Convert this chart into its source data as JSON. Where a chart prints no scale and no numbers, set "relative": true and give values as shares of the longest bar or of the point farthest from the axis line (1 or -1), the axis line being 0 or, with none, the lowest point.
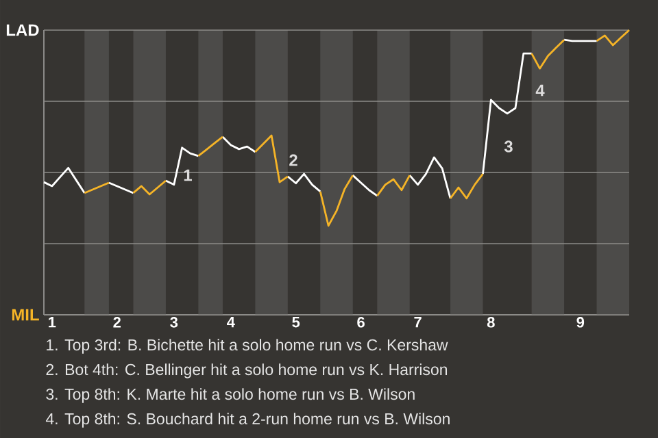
{
  "chart_data": {
    "type": "line",
    "relative": true,
    "categories": [
      null,
      "1",
      null,
      null,
      null,
      null,
      null,
      null,
      null,
      "2",
      null,
      null,
      null,
      null,
      null,
      null,
      "3",
      null,
      null,
      null,
      null,
      null,
      null,
      "4",
      null,
      null,
      null,
      null,
      null,
      null,
      null,
      "5",
      null,
      null,
      null,
      null,
      null,
      null,
      null,
      "6",
      null,
      null,
      null,
      null,
      null,
      null,
      "7",
      null,
      null,
      null,
      null,
      null,
      null,
      null,
      null,
      "8",
      null,
      null,
      null,
      null,
      null,
      null,
      null,
      null,
      null,
      null,
      "9",
      null,
      null,
      null,
      null,
      null,
      null
    ],
    "series": [
      {
        "color": "#ffffff",
        "values": [
          0.466,
          0.452,
          0.484,
          0.516,
          0.472,
          0.428,
          null,
          null,
          0.464,
          0.452,
          0.44,
          0.428,
          null,
          null,
          null,
          0.471,
          0.457,
          0.587,
          0.567,
          0.558,
          null,
          null,
          0.625,
          0.596,
          0.582,
          0.591,
          0.572,
          null,
          null,
          null,
          0.486,
          0.462,
          0.495,
          0.457,
          0.433,
          null,
          null,
          null,
          0.49,
          0.464,
          0.438,
          0.418,
          null,
          null,
          null,
          0.49,
          0.457,
          0.495,
          0.553,
          0.514,
          0.409,
          null,
          null,
          null,
          0.495,
          0.755,
          0.726,
          0.707,
          0.726,
          0.918,
          0.918,
          null,
          null,
          null,
          0.966,
          0.962,
          0.962,
          0.962,
          0.962,
          null,
          null,
          null,
          null
        ]
      },
      {
        "color": "#f5b427",
        "values": [
          null,
          null,
          null,
          null,
          null,
          0.428,
          0.44,
          0.452,
          0.464,
          null,
          null,
          0.428,
          0.452,
          0.423,
          0.447,
          0.471,
          null,
          null,
          null,
          0.558,
          0.58,
          0.603,
          0.625,
          null,
          null,
          null,
          0.572,
          0.601,
          0.63,
          0.466,
          0.486,
          null,
          null,
          null,
          0.433,
          0.313,
          0.365,
          0.442,
          0.49,
          null,
          null,
          0.418,
          0.457,
          0.476,
          0.438,
          0.49,
          null,
          null,
          null,
          null,
          0.409,
          0.447,
          0.409,
          0.457,
          0.495,
          null,
          null,
          null,
          null,
          null,
          0.918,
          0.865,
          0.909,
          0.938,
          0.966,
          null,
          null,
          null,
          0.962,
          0.981,
          0.947,
          0.974,
          1
        ]
      }
    ],
    "grid": "y",
    "marker": "none",
    "line_style": "solid",
    "annotations": [
      "LAD",
      "MIL",
      "1",
      "2",
      "3",
      "4",
      "1. Top 3rd: B. Bichette hit a solo home run vs C. Kershaw",
      "2. Bot 4th: C. Bellinger hit a solo home run vs K. Harrison",
      "3. Top 8th: K. Marte hit a solo home run vs B. Wilson",
      "4. Top 8th: S. Bouchard hit a 2-run home run vs B. Wilson"
    ]
  }
}
